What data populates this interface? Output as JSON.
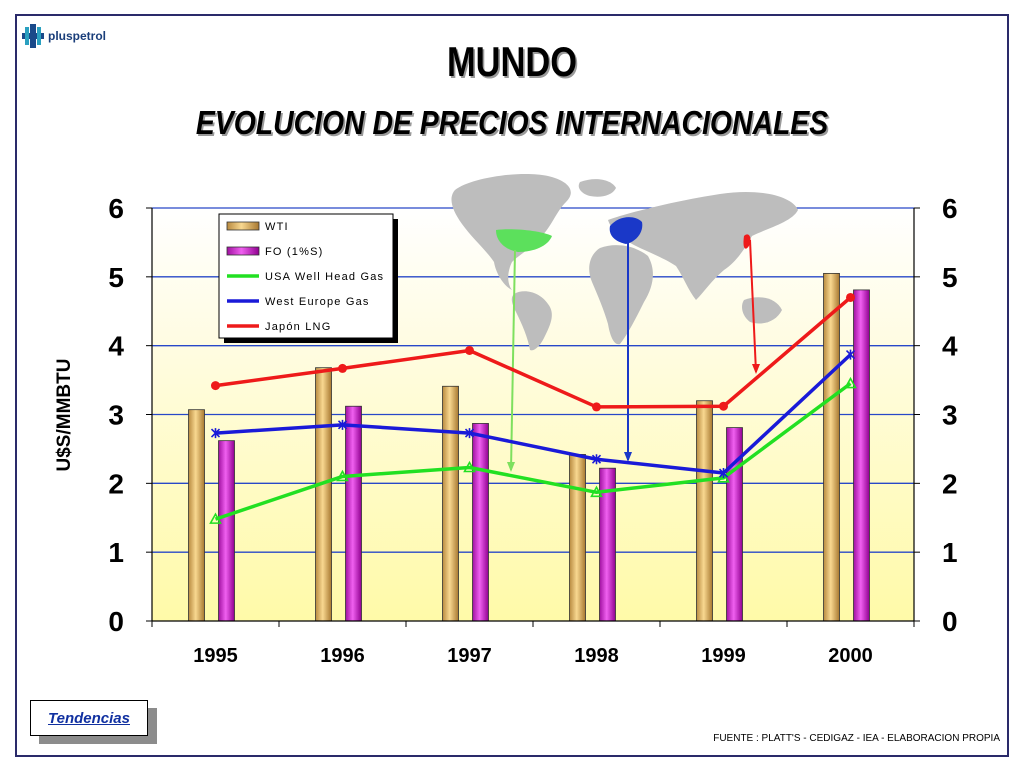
{
  "brand": {
    "name": "pluspetrol"
  },
  "header": {
    "title": "MUNDO",
    "subtitle": "EVOLUCION DE PRECIOS INTERNACIONALES"
  },
  "chart_data": {
    "type": "bar",
    "title": "EVOLUCION DE PRECIOS INTERNACIONALES",
    "xlabel": "",
    "ylabel": "U$S/MMBTU",
    "ylim": [
      0,
      6
    ],
    "yticks": [
      "0",
      "1",
      "2",
      "3",
      "4",
      "5",
      "6"
    ],
    "categories": [
      "1995",
      "1996",
      "1997",
      "1998",
      "1999",
      "2000"
    ],
    "bar_series": [
      {
        "name": "WTI",
        "values": [
          3.07,
          3.68,
          3.41,
          2.42,
          3.2,
          5.05
        ],
        "color": "#e0b060"
      },
      {
        "name": "FO (1%S)",
        "values": [
          2.62,
          3.12,
          2.87,
          2.22,
          2.81,
          4.81
        ],
        "color": "#d030d0"
      }
    ],
    "line_series": [
      {
        "name": "USA Well Head Gas",
        "values": [
          1.48,
          2.1,
          2.23,
          1.87,
          2.08,
          3.45
        ],
        "color": "#22e022"
      },
      {
        "name": "West Europe Gas",
        "values": [
          2.73,
          2.85,
          2.73,
          2.35,
          2.15,
          3.87
        ],
        "color": "#1a1ad8"
      },
      {
        "name": "Japón LNG",
        "values": [
          3.42,
          3.67,
          3.93,
          3.11,
          3.12,
          4.7
        ],
        "color": "#ee1a1a"
      }
    ],
    "legend_position": "top-left",
    "grid": true
  },
  "footer": {
    "button_label": "Tendencias",
    "source": "FUENTE : PLATT'S - CEDIGAZ - IEA - ELABORACION PROPIA"
  }
}
